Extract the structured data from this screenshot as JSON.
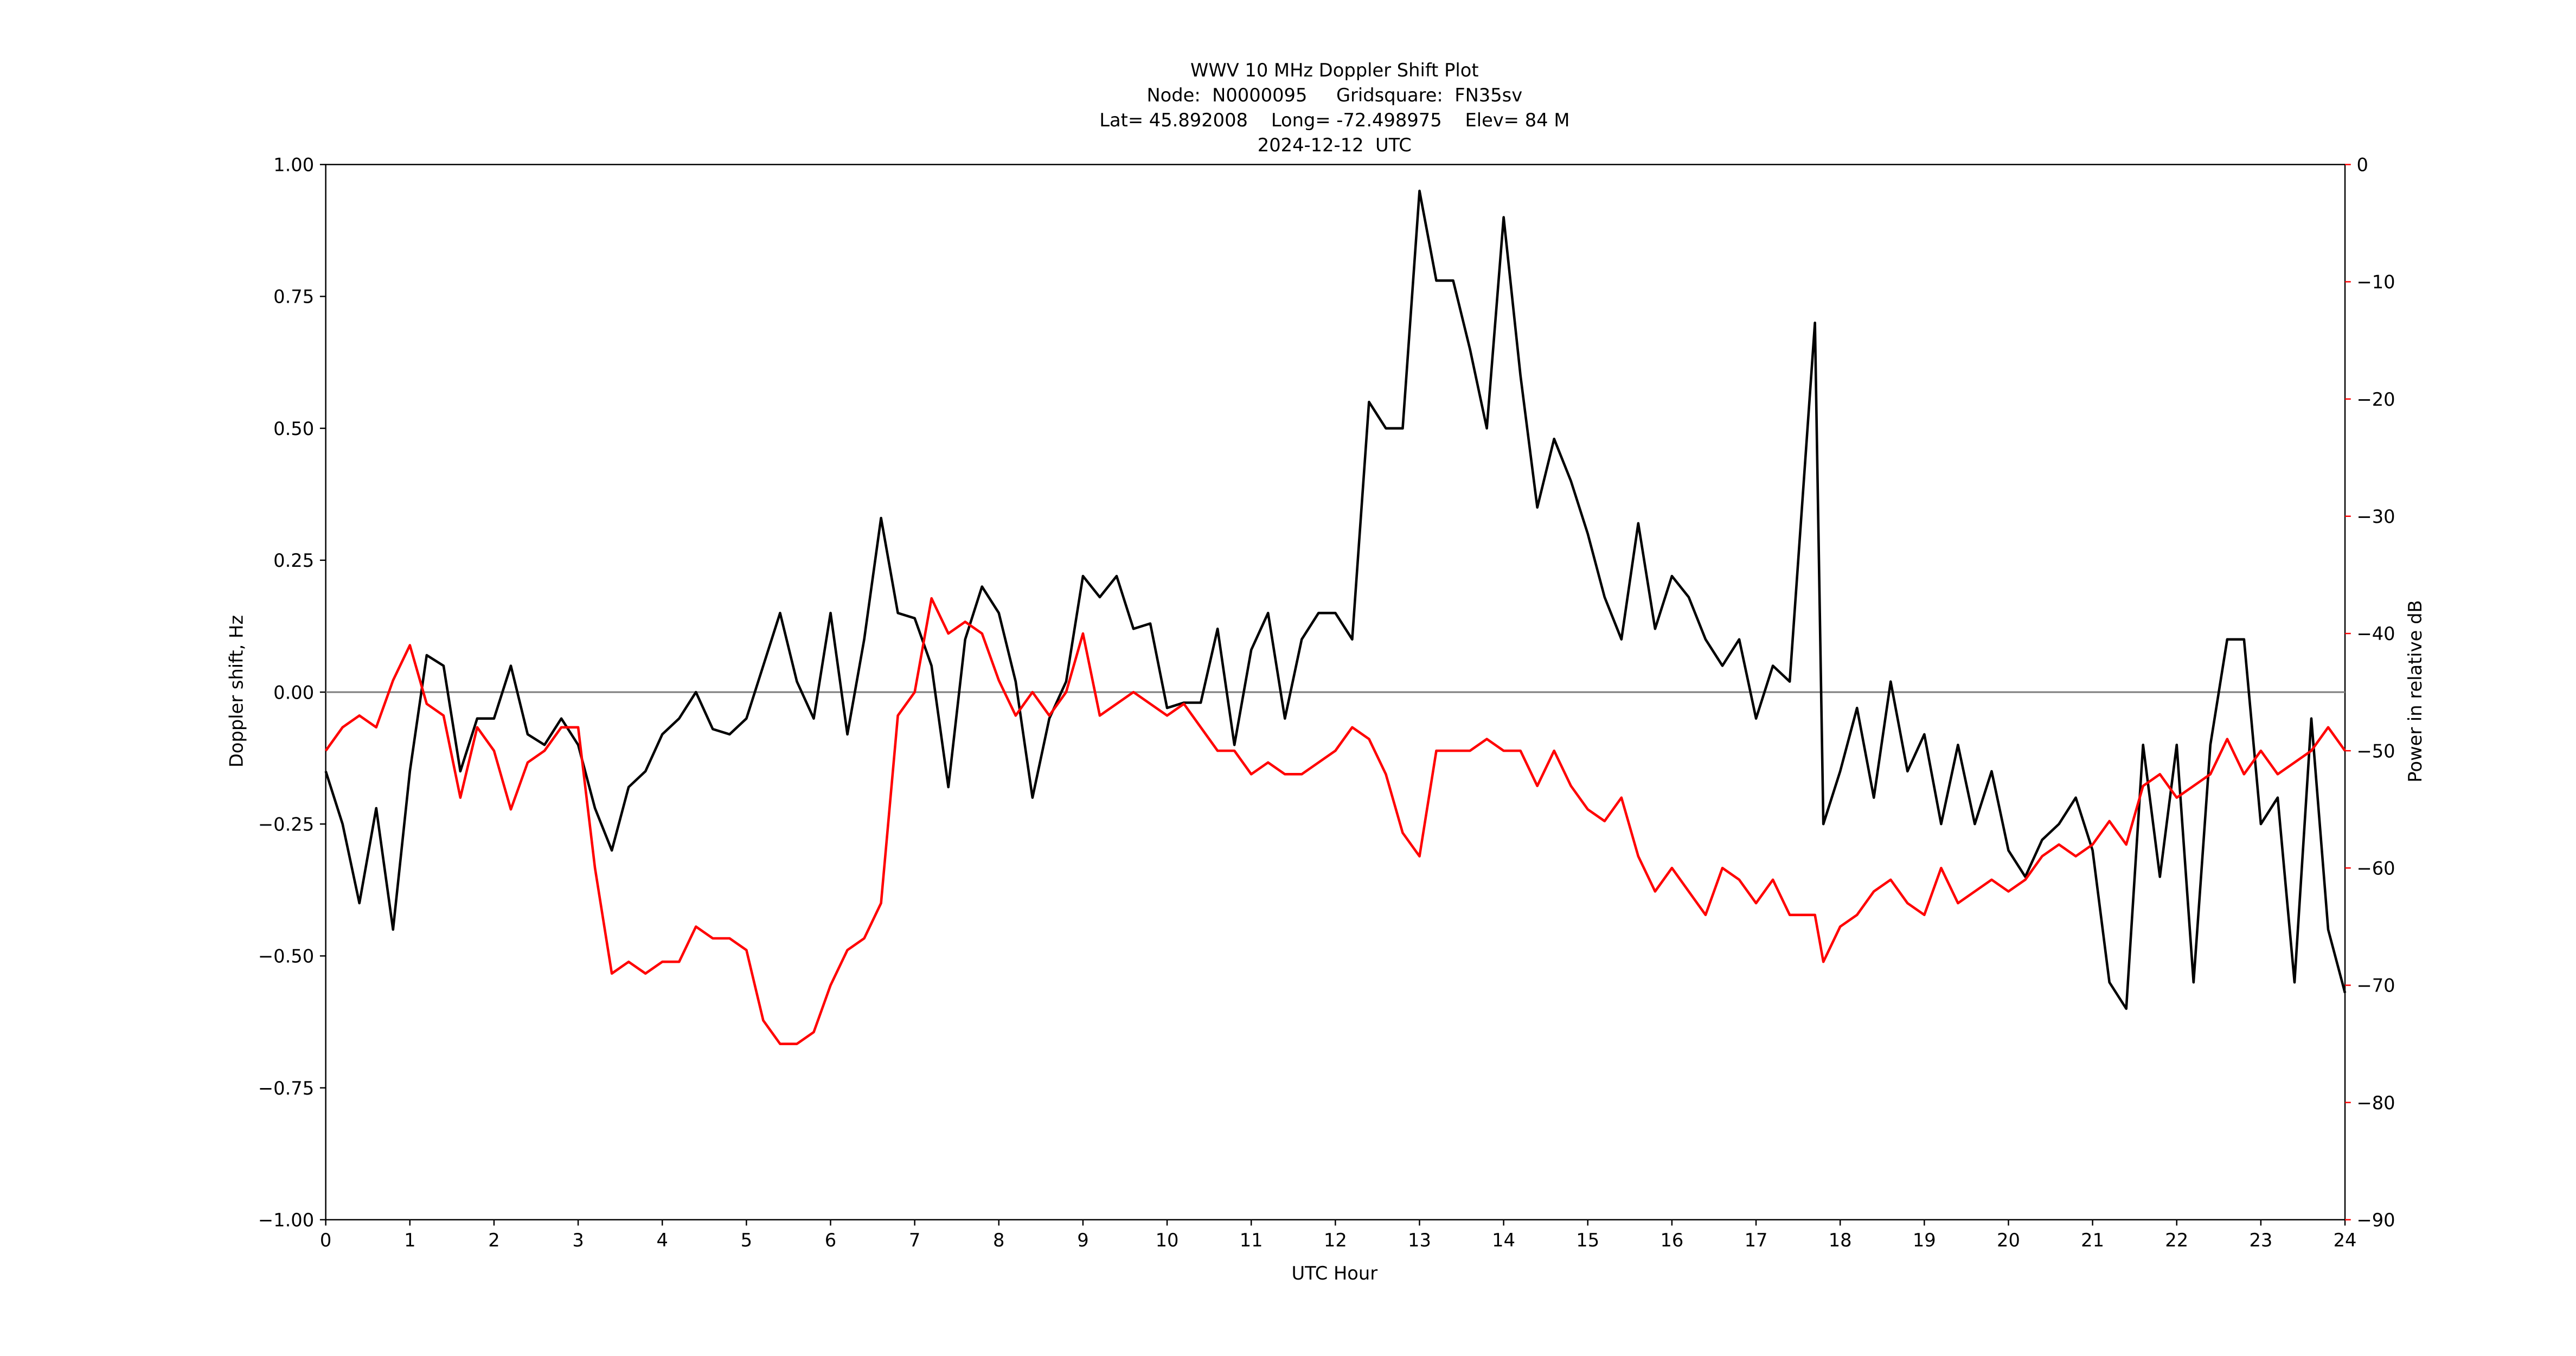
{
  "chart_data": {
    "type": "line",
    "title": [
      "WWV 10 MHz Doppler Shift Plot",
      "Node:  N0000095     Gridsquare:  FN35sv",
      "Lat= 45.892008    Long= -72.498975    Elev= 84 M",
      "2024-12-12  UTC"
    ],
    "x_label": "UTC Hour",
    "y_label": "Doppler shift, Hz",
    "y2_label": "Power in relative dB",
    "xlim": [
      0,
      24
    ],
    "xticks": [
      0,
      1,
      2,
      3,
      4,
      5,
      6,
      7,
      8,
      9,
      10,
      11,
      12,
      13,
      14,
      15,
      16,
      17,
      18,
      19,
      20,
      21,
      22,
      23,
      24
    ],
    "ylim": [
      -1,
      1
    ],
    "yticks": [
      {
        "value": -1,
        "label": "−1.00"
      },
      {
        "value": -0.75,
        "label": "−0.75"
      },
      {
        "value": -0.5,
        "label": "−0.50"
      },
      {
        "value": -0.25,
        "label": "−0.25"
      },
      {
        "value": 0,
        "label": "0.00"
      },
      0.25,
      {
        "value": 0.5,
        "label": "0.50"
      },
      0.75,
      {
        "value": 1,
        "label": "1.00"
      }
    ],
    "y2lim": [
      -90,
      0
    ],
    "y2ticks": [
      {
        "value": -90,
        "label": "−90"
      },
      {
        "value": -80,
        "label": "−80"
      },
      {
        "value": -70,
        "label": "−70"
      },
      {
        "value": -60,
        "label": "−60"
      },
      {
        "value": -50,
        "label": "−50"
      },
      {
        "value": -40,
        "label": "−40"
      },
      {
        "value": -30,
        "label": "−30"
      },
      {
        "value": -20,
        "label": "−20"
      },
      {
        "value": -10,
        "label": "−10"
      },
      0
    ],
    "y2_color": "#ff0000",
    "reference_line": 0,
    "reference_color": "#808080",
    "x": [
      0,
      0.2,
      0.4,
      0.6,
      0.8,
      1,
      1.2,
      1.4,
      1.6,
      1.8,
      2,
      2.2,
      2.4,
      2.6,
      2.8,
      3,
      3.2,
      3.4,
      3.6,
      3.8,
      4,
      4.2,
      4.4,
      4.6,
      4.8,
      5,
      5.2,
      5.4,
      5.6,
      5.8,
      6,
      6.2,
      6.4,
      6.6,
      6.8,
      7,
      7.2,
      7.4,
      7.6,
      7.8,
      8,
      8.2,
      8.4,
      8.6,
      8.8,
      9,
      9.2,
      9.4,
      9.6,
      9.8,
      10,
      10.2,
      10.4,
      10.6,
      10.8,
      11,
      11.2,
      11.4,
      11.6,
      11.8,
      12,
      12.2,
      12.4,
      12.6,
      12.8,
      13,
      13.2,
      13.4,
      13.6,
      13.8,
      14,
      14.2,
      14.4,
      14.6,
      14.8,
      15,
      15.2,
      15.4,
      15.6,
      15.8,
      16,
      16.2,
      16.4,
      16.6,
      16.8,
      17,
      17.2,
      17.4,
      17.7,
      17.8,
      18,
      18.2,
      18.4,
      18.6,
      18.8,
      19,
      19.2,
      19.4,
      19.6,
      19.8,
      20,
      20.2,
      20.4,
      20.6,
      20.8,
      21,
      21.2,
      21.4,
      21.6,
      21.8,
      22,
      22.2,
      22.4,
      22.6,
      22.8,
      23,
      23.2,
      23.4,
      23.6,
      23.8,
      24
    ],
    "series": [
      {
        "color": "#000000",
        "values": [
          -0.15,
          -0.25,
          -0.4,
          -0.22,
          -0.45,
          -0.15,
          0.07,
          0.05,
          -0.15,
          -0.05,
          -0.05,
          0.05,
          -0.08,
          -0.1,
          -0.05,
          -0.1,
          -0.22,
          -0.3,
          -0.18,
          -0.15,
          -0.08,
          -0.05,
          0,
          -0.07,
          -0.08,
          -0.05,
          0.05,
          0.15,
          0.02,
          -0.05,
          0.15,
          -0.08,
          0.1,
          0.33,
          0.15,
          0.14,
          0.05,
          -0.18,
          0.1,
          0.2,
          0.15,
          0.02,
          -0.2,
          -0.05,
          0.02,
          0.22,
          0.18,
          0.22,
          0.12,
          0.13,
          -0.03,
          -0.02,
          -0.02,
          0.12,
          -0.1,
          0.08,
          0.15,
          -0.05,
          0.1,
          0.15,
          0.15,
          0.1,
          0.55,
          0.5,
          0.5,
          0.95,
          0.78,
          0.78,
          0.65,
          0.5,
          0.9,
          0.6,
          0.35,
          0.48,
          0.4,
          0.3,
          0.18,
          0.1,
          0.32,
          0.12,
          0.22,
          0.18,
          0.1,
          0.05,
          0.1,
          -0.05,
          0.05,
          0.02,
          0.7,
          -0.25,
          -0.15,
          -0.03,
          -0.2,
          0.02,
          -0.15,
          -0.08,
          -0.25,
          -0.1,
          -0.25,
          -0.15,
          -0.3,
          -0.35,
          -0.28,
          -0.25,
          -0.2,
          -0.3,
          -0.55,
          -0.6,
          -0.1,
          -0.35,
          -0.1,
          -0.55,
          -0.1,
          0.1,
          0.1,
          -0.25,
          -0.2,
          -0.55,
          -0.05,
          -0.45,
          -0.57
        ]
      },
      {
        "color": "#ff0000",
        "axis": "y2",
        "values": [
          -50,
          -48,
          -47,
          -48,
          -44,
          -41,
          -46,
          -47,
          -54,
          -48,
          -50,
          -55,
          -51,
          -50,
          -48,
          -48,
          -60,
          -69,
          -68,
          -69,
          -68,
          -68,
          -65,
          -66,
          -66,
          -67,
          -73,
          -75,
          -75,
          -74,
          -70,
          -67,
          -66,
          -63,
          -47,
          -45,
          -37,
          -40,
          -39,
          -40,
          -44,
          -47,
          -45,
          -47,
          -45,
          -40,
          -47,
          -46,
          -45,
          -46,
          -47,
          -46,
          -48,
          -50,
          -50,
          -52,
          -51,
          -52,
          -52,
          -51,
          -50,
          -48,
          -49,
          -52,
          -57,
          -59,
          -50,
          -50,
          -50,
          -49,
          -50,
          -50,
          -53,
          -50,
          -53,
          -55,
          -56,
          -54,
          -59,
          -62,
          -60,
          -62,
          -64,
          -60,
          -61,
          -63,
          -61,
          -64,
          -64,
          -68,
          -65,
          -64,
          -62,
          -61,
          -63,
          -64,
          -60,
          -63,
          -62,
          -61,
          -62,
          -61,
          -59,
          -58,
          -59,
          -58,
          -56,
          -58,
          -53,
          -52,
          -54,
          -53,
          -52,
          -49,
          -52,
          -50,
          -52,
          -51,
          -50,
          -48,
          -50
        ]
      }
    ]
  }
}
